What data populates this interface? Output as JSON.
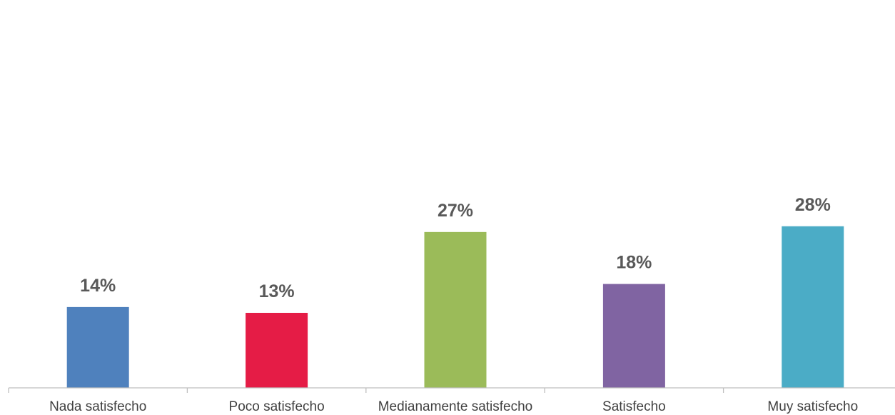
{
  "chart_data": {
    "type": "bar",
    "categories": [
      "Nada satisfecho",
      "Poco satisfecho",
      "Medianamente satisfecho",
      "Satisfecho",
      "Muy satisfecho"
    ],
    "values": [
      14,
      13,
      27,
      18,
      28
    ],
    "value_labels": [
      "14%",
      "13%",
      "27%",
      "18%",
      "28%"
    ],
    "colors": [
      "#4f81bd",
      "#e51c46",
      "#9bbb59",
      "#8064a2",
      "#4bacc6"
    ],
    "ylim": [
      0,
      30
    ],
    "grid": false,
    "legend": "none",
    "title": "",
    "xlabel": "",
    "ylabel": ""
  }
}
